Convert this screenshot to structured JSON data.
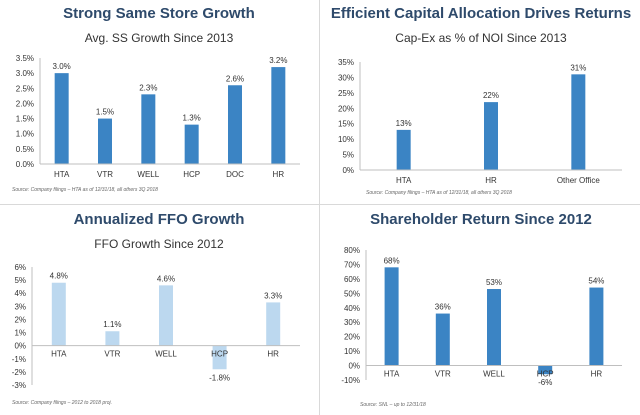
{
  "colors": {
    "bar_dark": "#3b84c4",
    "bar_light": "#bcd8ef",
    "title": "#2e4a6b"
  },
  "panels": [
    {
      "title": "Strong Same Store Growth",
      "subtitle": "Avg. SS Growth Since 2013",
      "source": "Source: Company filings – HTA as of 12/31/18, all others 3Q 2018"
    },
    {
      "title": "Efficient Capital Allocation Drives Returns",
      "subtitle": "Cap-Ex as % of NOI Since 2013",
      "source": "Source: Company filings – HTA as of 12/31/18, all others 3Q 2018"
    },
    {
      "title": "Annualized FFO Growth",
      "subtitle": "FFO Growth Since 2012",
      "source": "Source: Company filings – 2012 to 2018 proj."
    },
    {
      "title": "Shareholder Return Since 2012",
      "subtitle": "",
      "source": "Source: SNL – up to 12/31/18"
    }
  ],
  "chart_data": [
    {
      "type": "bar",
      "title": "Strong Same Store Growth",
      "subtitle": "Avg. SS Growth Since 2013",
      "categories": [
        "HTA",
        "VTR",
        "WELL",
        "HCP",
        "DOC",
        "HR"
      ],
      "values": [
        3.0,
        1.5,
        2.3,
        1.3,
        2.6,
        3.2
      ],
      "data_labels": [
        "3.0%",
        "1.5%",
        "2.3%",
        "1.3%",
        "2.6%",
        "3.2%"
      ],
      "yticks": [
        "0.0%",
        "0.5%",
        "1.0%",
        "1.5%",
        "2.0%",
        "2.5%",
        "3.0%",
        "3.5%"
      ],
      "ylim": [
        0,
        3.5
      ],
      "tick_step": 0.5,
      "bar_color": "#3b84c4",
      "grid": false
    },
    {
      "type": "bar",
      "title": "Efficient Capital Allocation Drives Returns",
      "subtitle": "Cap-Ex as % of NOI Since 2013",
      "categories": [
        "HTA",
        "HR",
        "Other Office"
      ],
      "values": [
        13,
        22,
        31
      ],
      "data_labels": [
        "13%",
        "22%",
        "31%"
      ],
      "yticks": [
        "0%",
        "5%",
        "10%",
        "15%",
        "20%",
        "25%",
        "30%",
        "35%"
      ],
      "ylim": [
        0,
        35
      ],
      "tick_step": 5,
      "bar_color": "#3b84c4",
      "grid": false
    },
    {
      "type": "bar",
      "title": "Annualized FFO Growth",
      "subtitle": "FFO Growth Since 2012",
      "categories": [
        "HTA",
        "VTR",
        "WELL",
        "HCP",
        "HR"
      ],
      "values": [
        4.8,
        1.1,
        4.6,
        -1.8,
        3.3
      ],
      "data_labels": [
        "4.8%",
        "1.1%",
        "4.6%",
        "-1.8%",
        "3.3%"
      ],
      "yticks": [
        "-3%",
        "-2%",
        "-1%",
        "0%",
        "1%",
        "2%",
        "3%",
        "4%",
        "5%",
        "6%"
      ],
      "ylim": [
        -3,
        6
      ],
      "tick_step": 1,
      "bar_color": "#bcd8ef",
      "grid": false
    },
    {
      "type": "bar",
      "title": "Shareholder Return Since 2012",
      "categories": [
        "HTA",
        "VTR",
        "WELL",
        "HCP",
        "HR"
      ],
      "values": [
        68,
        36,
        53,
        -6,
        54
      ],
      "data_labels": [
        "68%",
        "36%",
        "53%",
        "-6%",
        "54%"
      ],
      "yticks": [
        "-10%",
        "0%",
        "10%",
        "20%",
        "30%",
        "40%",
        "50%",
        "60%",
        "70%",
        "80%"
      ],
      "ylim": [
        -10,
        80
      ],
      "tick_step": 10,
      "bar_color": "#3b84c4",
      "grid": false
    }
  ]
}
